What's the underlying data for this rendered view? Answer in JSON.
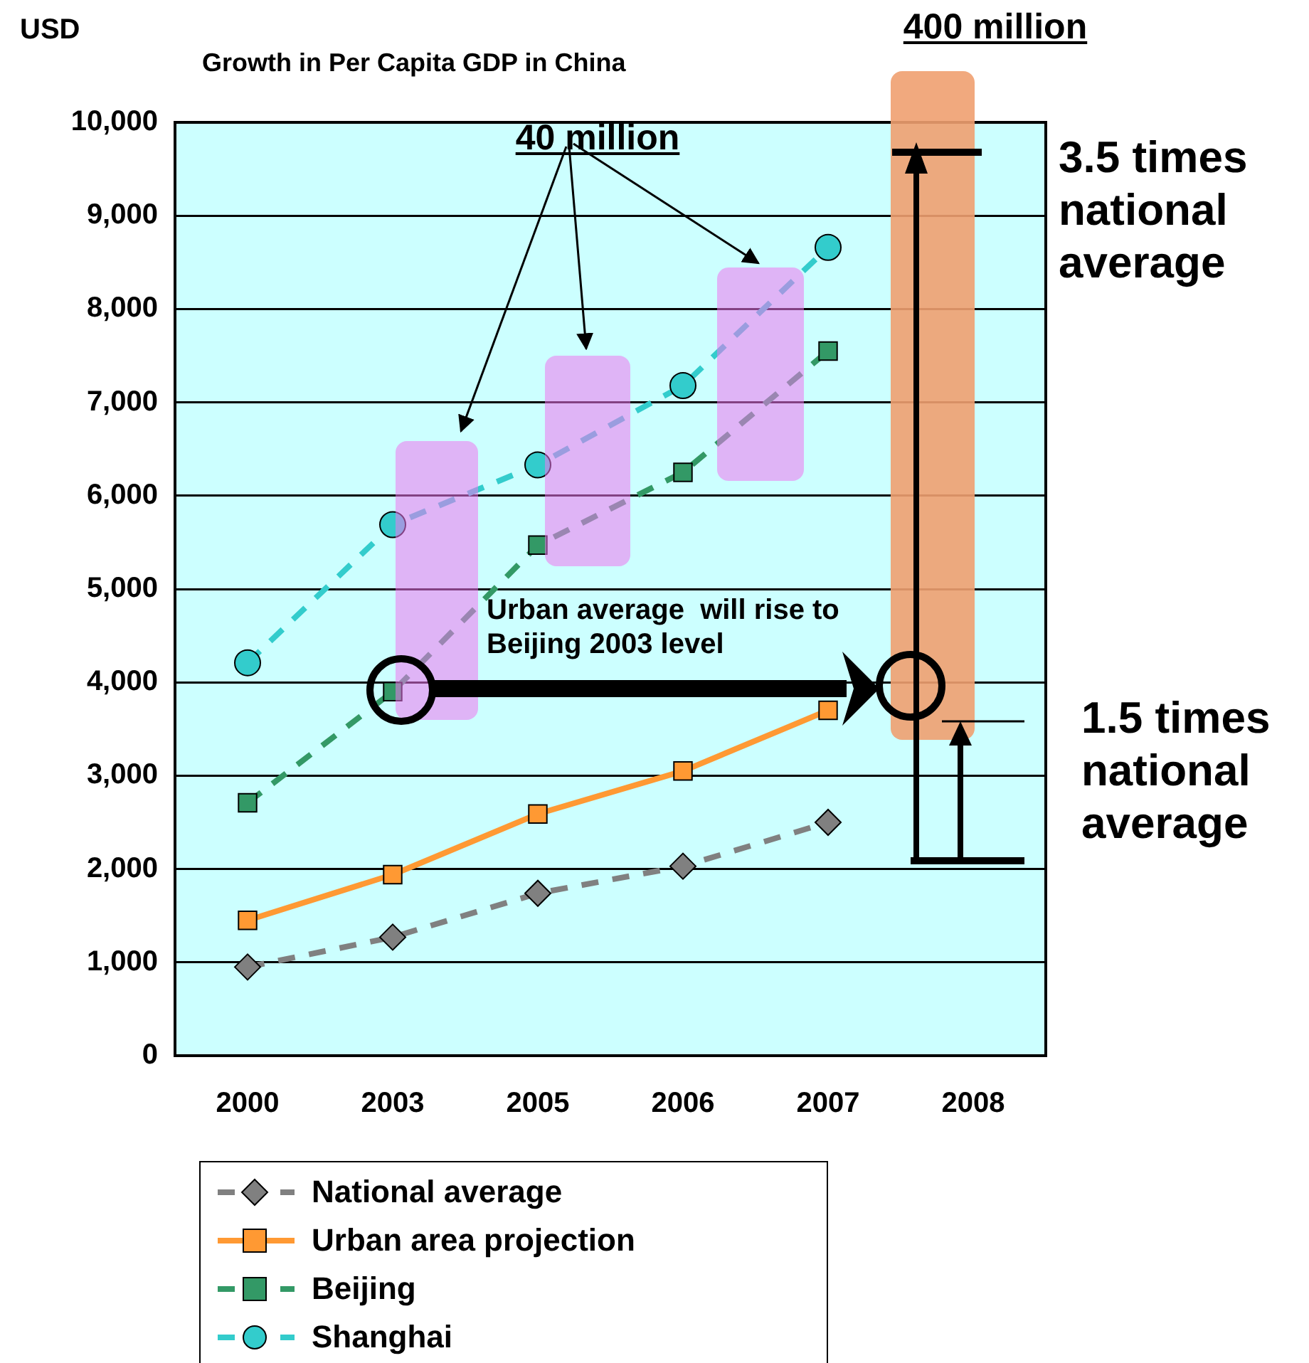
{
  "chart_data": {
    "type": "line",
    "title": "Growth in Per Capita GDP in China",
    "ylabel": "USD",
    "categories": [
      "2000",
      "2003",
      "2005",
      "2006",
      "2007",
      "2008"
    ],
    "series": [
      {
        "name": "National average",
        "color": "#808080",
        "marker": "diamond",
        "line_style": "dashed",
        "values": [
          950,
          1270,
          1740,
          2030,
          2500,
          null
        ]
      },
      {
        "name": "Urban area projection",
        "color": "#ff9933",
        "marker": "square",
        "line_style": "solid",
        "values": [
          1450,
          1940,
          2590,
          3050,
          3700,
          null
        ]
      },
      {
        "name": "Beijing",
        "color": "#339966",
        "marker": "square",
        "line_style": "dashed",
        "values": [
          2710,
          3900,
          5470,
          6250,
          7550,
          null
        ]
      },
      {
        "name": "Shanghai",
        "color": "#33cccc",
        "marker": "circle",
        "line_style": "dashed",
        "values": [
          4210,
          5690,
          6330,
          7180,
          8660,
          null
        ]
      }
    ],
    "ylim": [
      0,
      10000
    ],
    "yticks": [
      0,
      {
        "value": 1000,
        "label": "1,000"
      },
      {
        "value": 2000,
        "label": "2,000"
      },
      {
        "value": 3000,
        "label": "3,000"
      },
      {
        "value": 4000,
        "label": "4,000"
      },
      {
        "value": 5000,
        "label": "5,000"
      },
      {
        "value": 6000,
        "label": "6,000"
      },
      {
        "value": 7000,
        "label": "7,000"
      },
      {
        "value": 8000,
        "label": "8,000"
      },
      {
        "value": 9000,
        "label": "9,000"
      },
      {
        "value": 10000,
        "label": "10,000"
      }
    ],
    "grid": "y",
    "legend": "bottom",
    "annotations": [
      "40 million",
      "400 million",
      "3.5 times national average",
      "1.5 times national average",
      "Urban average  will rise to Beijing 2003 level"
    ]
  }
}
